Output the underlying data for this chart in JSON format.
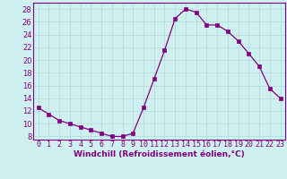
{
  "x": [
    0,
    1,
    2,
    3,
    4,
    5,
    6,
    7,
    8,
    9,
    10,
    11,
    12,
    13,
    14,
    15,
    16,
    17,
    18,
    19,
    20,
    21,
    22,
    23
  ],
  "y": [
    12.5,
    11.5,
    10.5,
    10.0,
    9.5,
    9.0,
    8.5,
    8.0,
    8.0,
    8.5,
    12.5,
    17.0,
    21.5,
    26.5,
    28.0,
    27.5,
    25.5,
    25.5,
    24.5,
    23.0,
    21.0,
    19.0,
    15.5,
    14.0
  ],
  "line_color": "#800080",
  "marker": "s",
  "marker_size": 2.5,
  "bg_color": "#cff0f0",
  "grid_color": "#b0d8d8",
  "xlabel": "Windchill (Refroidissement éolien,°C)",
  "xlabel_fontsize": 6.5,
  "ylabel_values": [
    8,
    10,
    12,
    14,
    16,
    18,
    20,
    22,
    24,
    26,
    28
  ],
  "ylim": [
    7.5,
    29
  ],
  "xlim": [
    -0.5,
    23.5
  ],
  "tick_fontsize": 6.0
}
